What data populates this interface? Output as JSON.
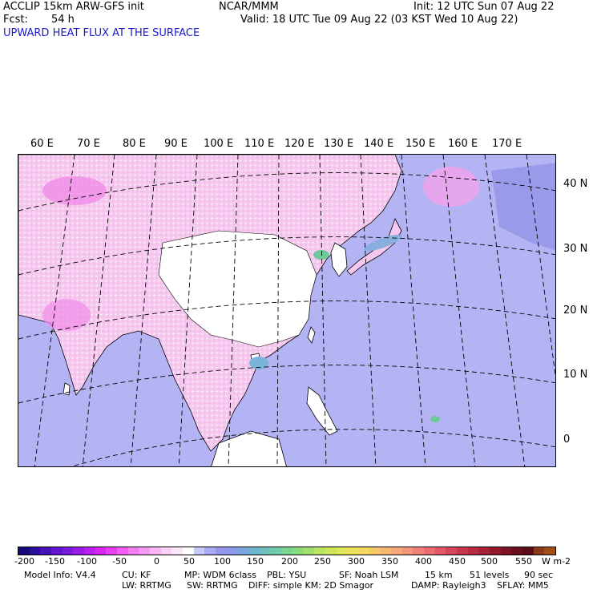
{
  "header": {
    "model": "ACCLIP 15km ARW-GFS init",
    "org": "NCAR/MMM",
    "init": "Init: 12 UTC Sun 07 Aug 22",
    "fcst_label": "Fcst:",
    "fcst_value": "54 h",
    "valid": "Valid: 18 UTC Tue 09 Aug 22 (03 KST Wed 10 Aug 22)",
    "field_title": "UPWARD HEAT FLUX AT THE SURFACE"
  },
  "map": {
    "lon_labels": [
      "60 E",
      "70 E",
      "80 E",
      "90 E",
      "100 E",
      "110 E",
      "120 E",
      "130 E",
      "140 E",
      "150 E",
      "160 E",
      "170 E"
    ],
    "lat_labels": [
      "40 N",
      "30 N",
      "20 N",
      "10 N",
      "0"
    ],
    "colors": {
      "ocean": "#b4b4f4",
      "land": "#ffffff",
      "pink_land": "#f7c8ef",
      "magenta": "#f08ce8",
      "green": "#6ec89a",
      "coast": "#000000",
      "grid": "#000000"
    }
  },
  "colorbar": {
    "ticks": [
      "-200",
      "-150",
      "-100",
      "-50",
      "0",
      "50",
      "100",
      "150",
      "200",
      "250",
      "300",
      "350",
      "400",
      "450",
      "500",
      "550"
    ],
    "units": "W m-2",
    "colors": [
      "#140a78",
      "#2a0f9a",
      "#4412b6",
      "#5f16cc",
      "#7a18dc",
      "#9a1ae6",
      "#bb1ef0",
      "#d825f2",
      "#ea3ef2",
      "#f25ef2",
      "#f37cf2",
      "#f59af3",
      "#f8b6f5",
      "#fad0f8",
      "#fde6fc",
      "#ffffff",
      "#c8c8fa",
      "#aaaaf4",
      "#9696ec",
      "#8a9ae6",
      "#7aa6dd",
      "#6fb4d0",
      "#6ec0be",
      "#70cca8",
      "#78d690",
      "#88dc7a",
      "#a0e06a",
      "#b8e462",
      "#cce65c",
      "#dde658",
      "#ece25a",
      "#f4d660",
      "#f6c868",
      "#f7b870",
      "#f7a878",
      "#f4967a",
      "#f08078",
      "#ea6c70",
      "#e25866",
      "#d6465a",
      "#c8364e",
      "#b82a42",
      "#a62036",
      "#92182c",
      "#7e1224",
      "#6a0e1e",
      "#5a0c1a",
      "#8a3a16",
      "#a04e14"
    ]
  },
  "footer": {
    "model_info": "Model Info: V4.4",
    "cu": "CU: KF",
    "mp": "MP: WDM 6class",
    "pbl": "PBL: YSU",
    "sf": "SF: Noah LSM",
    "res": "15 km",
    "levels": "51 levels",
    "dt": "90 sec",
    "lw": "LW: RRTMG",
    "sw": "SW: RRTMG",
    "diff": "DIFF: simple KM: 2D Smagor",
    "damp": "DAMP: Rayleigh3",
    "sflay": "SFLAY: MM5"
  }
}
